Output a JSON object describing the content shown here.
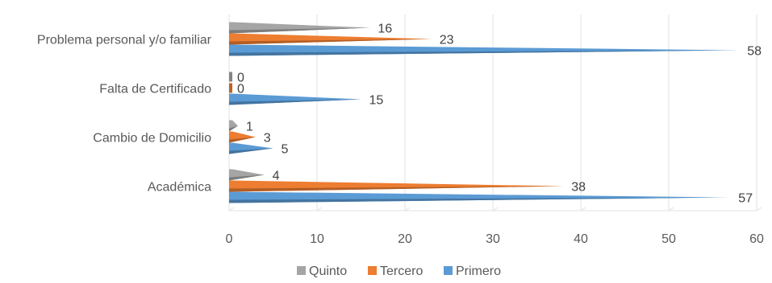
{
  "chart_data": {
    "type": "bar",
    "orientation": "horizontal",
    "title": "",
    "xlabel": "",
    "ylabel": "",
    "categories": [
      "Académica",
      "Cambio de Domicilio",
      "Falta de Certificado",
      "Problema personal y/o familiar"
    ],
    "series": [
      {
        "name": "Primero",
        "color": "#5B9BD5",
        "values": [
          57,
          5,
          15,
          58
        ]
      },
      {
        "name": "Tercero",
        "color": "#ED7D31",
        "values": [
          38,
          3,
          0,
          23
        ]
      },
      {
        "name": "Quinto",
        "color": "#A5A5A5",
        "values": [
          4,
          1,
          0,
          16
        ]
      }
    ],
    "xlim": [
      0,
      60
    ],
    "xticks": [
      "0",
      "10",
      "20",
      "30",
      "40",
      "50",
      "60"
    ],
    "grid": "vertical",
    "legend_position": "bottom",
    "legend_order": [
      "Quinto",
      "Tercero",
      "Primero"
    ]
  }
}
